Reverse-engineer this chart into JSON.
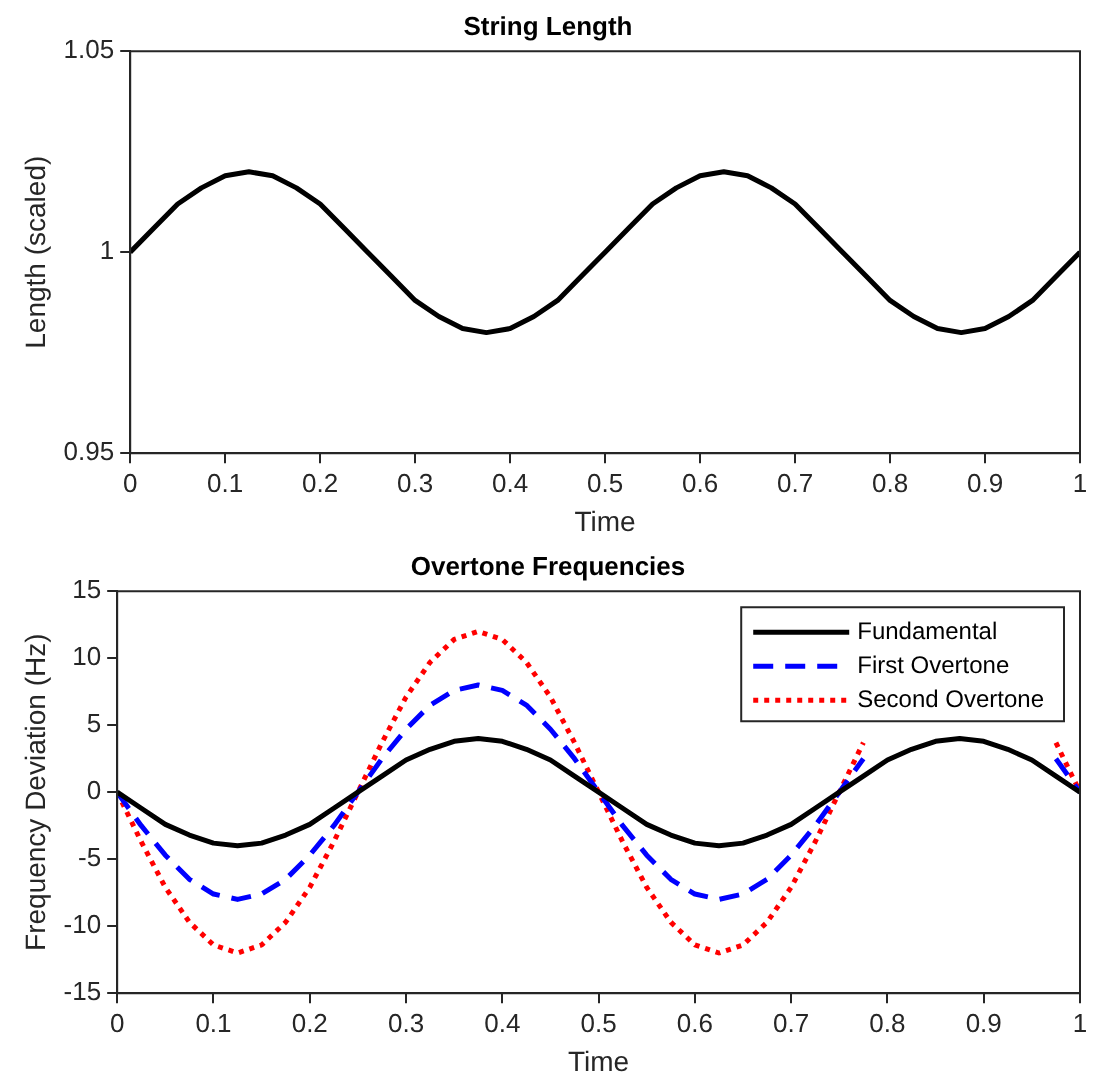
{
  "chart_data": [
    {
      "type": "line",
      "title": "String Length",
      "xlabel": "Time",
      "ylabel": "Length (scaled)",
      "x": [
        0,
        0.025,
        0.05,
        0.075,
        0.1,
        0.125,
        0.15,
        0.175,
        0.2,
        0.225,
        0.25,
        0.275,
        0.3,
        0.325,
        0.35,
        0.375,
        0.4,
        0.425,
        0.45,
        0.475,
        0.5,
        0.525,
        0.55,
        0.575,
        0.6,
        0.625,
        0.65,
        0.675,
        0.7,
        0.725,
        0.75,
        0.775,
        0.8,
        0.825,
        0.85,
        0.875,
        0.9,
        0.925,
        0.95,
        0.975,
        1
      ],
      "series": [
        {
          "color": "#000000",
          "line_style": "solid",
          "values": [
            1,
            1.006,
            1.012,
            1.016,
            1.019,
            1.02,
            1.019,
            1.016,
            1.012,
            1.006,
            1,
            0.994,
            0.988,
            0.984,
            0.981,
            0.98,
            0.981,
            0.984,
            0.988,
            0.994,
            1,
            1.006,
            1.012,
            1.016,
            1.019,
            1.02,
            1.019,
            1.016,
            1.012,
            1.006,
            1,
            0.994,
            0.988,
            0.984,
            0.981,
            0.98,
            0.981,
            0.984,
            0.988,
            0.994,
            1
          ]
        }
      ],
      "xlim": [
        0,
        1
      ],
      "xticks": [
        0,
        0.1,
        0.2,
        0.3,
        0.4,
        0.5,
        0.6,
        0.7,
        0.8,
        0.9,
        1
      ],
      "ylim": [
        0.95,
        1.05
      ],
      "yticks": [
        0.95,
        1,
        1.05
      ],
      "grid": false,
      "legend": false,
      "marker": "none"
    },
    {
      "type": "line",
      "title": "Overtone Frequencies",
      "xlabel": "Time",
      "ylabel": "Frequency Deviation (Hz)",
      "x": [
        0,
        0.025,
        0.05,
        0.075,
        0.1,
        0.125,
        0.15,
        0.175,
        0.2,
        0.225,
        0.25,
        0.275,
        0.3,
        0.325,
        0.35,
        0.375,
        0.4,
        0.425,
        0.45,
        0.475,
        0.5,
        0.525,
        0.55,
        0.575,
        0.6,
        0.625,
        0.65,
        0.675,
        0.7,
        0.725,
        0.75,
        0.775,
        0.8,
        0.825,
        0.85,
        0.875,
        0.9,
        0.925,
        0.95,
        0.975,
        1
      ],
      "series": [
        {
          "name": "Fundamental",
          "color": "#000000",
          "line_style": "solid",
          "values": [
            0,
            -1.2,
            -2.4,
            -3.2,
            -3.8,
            -4,
            -3.8,
            -3.2,
            -2.4,
            -1.2,
            0,
            1.2,
            2.4,
            3.2,
            3.8,
            4,
            3.8,
            3.2,
            2.4,
            1.2,
            0,
            -1.2,
            -2.4,
            -3.2,
            -3.8,
            -4,
            -3.8,
            -3.2,
            -2.4,
            -1.2,
            0,
            1.2,
            2.4,
            3.2,
            3.8,
            4,
            3.8,
            3.2,
            2.4,
            1.2,
            0
          ]
        },
        {
          "name": "First Overtone",
          "color": "#0000ff",
          "line_style": "dashed",
          "values": [
            0,
            -2.5,
            -4.7,
            -6.5,
            -7.6,
            -8,
            -7.6,
            -6.5,
            -4.7,
            -2.5,
            0,
            2.5,
            4.7,
            6.5,
            7.6,
            8,
            7.6,
            6.5,
            4.7,
            2.5,
            0,
            -2.5,
            -4.7,
            -6.5,
            -7.6,
            -8,
            -7.6,
            -6.5,
            -4.7,
            -2.5,
            0,
            2.5,
            null,
            null,
            null,
            null,
            null,
            null,
            null,
            2.5,
            0
          ]
        },
        {
          "name": "Second Overtone",
          "color": "#ff0000",
          "line_style": "dotted",
          "values": [
            0,
            -3.7,
            -7.1,
            -9.7,
            -11.4,
            -12,
            -11.4,
            -9.7,
            -7.1,
            -3.7,
            0,
            3.7,
            7.1,
            9.7,
            11.4,
            12,
            11.4,
            9.7,
            7.1,
            3.7,
            0,
            -3.7,
            -7.1,
            -9.7,
            -11.4,
            -12,
            -11.4,
            -9.7,
            -7.1,
            -3.7,
            0,
            3.7,
            null,
            null,
            null,
            null,
            null,
            null,
            null,
            3.7,
            0
          ]
        }
      ],
      "xlim": [
        0,
        1
      ],
      "xticks": [
        0,
        0.1,
        0.2,
        0.3,
        0.4,
        0.5,
        0.6,
        0.7,
        0.8,
        0.9,
        1
      ],
      "ylim": [
        -15,
        15
      ],
      "yticks": [
        -15,
        -10,
        -5,
        0,
        5,
        10,
        15
      ],
      "grid": false,
      "legend": "top right",
      "marker": "none"
    }
  ]
}
